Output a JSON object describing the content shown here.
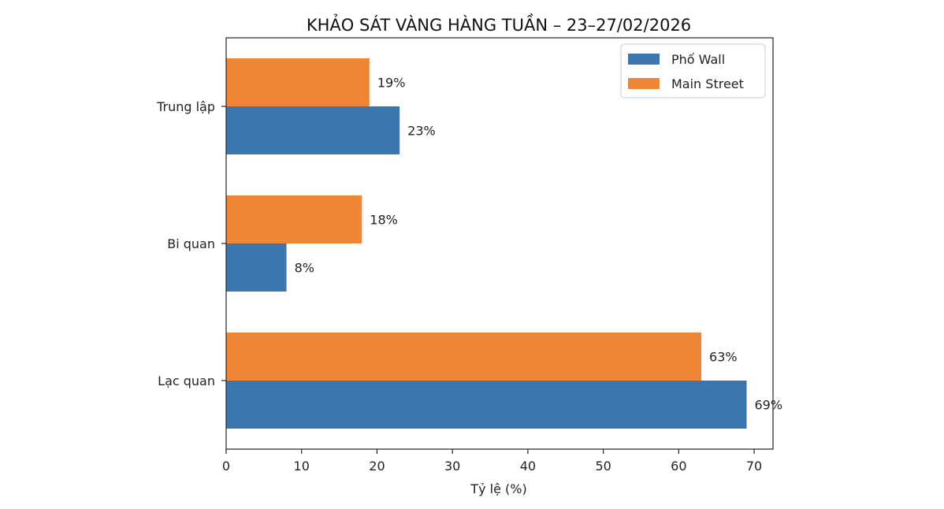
{
  "chart_data": {
    "type": "bar",
    "orientation": "horizontal",
    "title": "KHẢO SÁT VÀNG HÀNG TUẦN – 23–27/02/2026",
    "xlabel": "Tỷ lệ (%)",
    "ylabel": "",
    "categories": [
      "Lạc quan",
      "Bi quan",
      "Trung lập"
    ],
    "series": [
      {
        "name": "Phố Wall",
        "values": [
          69,
          8,
          23
        ],
        "labels": [
          "69%",
          "8%",
          "23%"
        ],
        "color": "#3b76ae"
      },
      {
        "name": "Main Street",
        "values": [
          63,
          18,
          19
        ],
        "labels": [
          "63%",
          "18%",
          "19%"
        ],
        "color": "#ef8636"
      }
    ],
    "xlim": [
      0,
      72.5
    ],
    "xticks": [
      0,
      10,
      20,
      30,
      40,
      50,
      60,
      70
    ],
    "grid": false,
    "legend": "top-right"
  }
}
